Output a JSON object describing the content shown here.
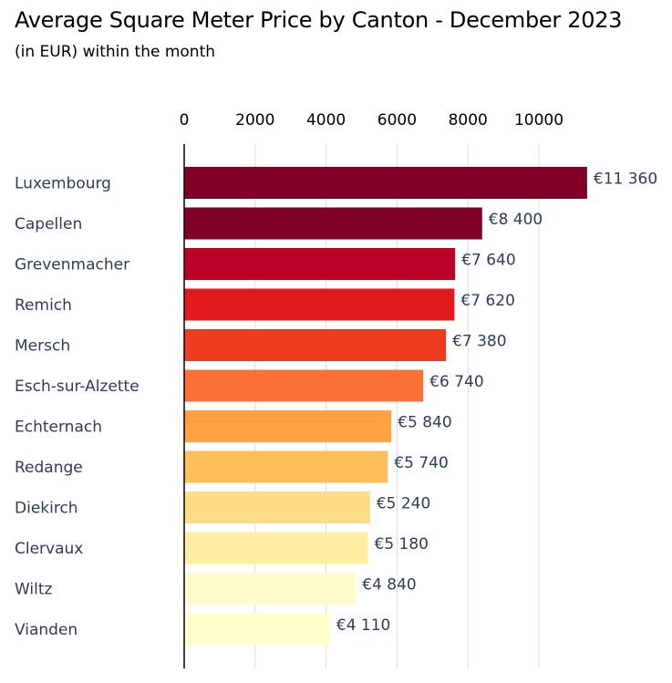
{
  "chart_data": {
    "type": "bar",
    "orientation": "horizontal",
    "title": "Average Square Meter Price by Canton - December 2023",
    "subtitle": "(in EUR) within the month",
    "categories": [
      "Luxembourg",
      "Capellen",
      "Grevenmacher",
      "Remich",
      "Mersch",
      "Esch-sur-Alzette",
      "Echternach",
      "Redange",
      "Diekirch",
      "Clervaux",
      "Wiltz",
      "Vianden"
    ],
    "values": [
      11360,
      8400,
      7640,
      7620,
      7380,
      6740,
      5840,
      5740,
      5240,
      5180,
      4840,
      4110
    ],
    "data_labels": [
      "€11 360",
      "€8 400",
      "€7 640",
      "€7 620",
      "€7 380",
      "€6 740",
      "€5 840",
      "€5 740",
      "€5 240",
      "€5 180",
      "€4 840",
      "€4 110"
    ],
    "colors": [
      "#800026",
      "#800026",
      "#bd0026",
      "#e31a1c",
      "#f03b20",
      "#fd7036",
      "#fea243",
      "#febe59",
      "#fedd85",
      "#ffeea2",
      "#fffccc",
      "#ffffcc"
    ],
    "x_ticks": [
      0,
      2000,
      4000,
      6000,
      8000,
      10000
    ],
    "xlim": [
      0,
      11360
    ],
    "axis_position": "top",
    "grid": "vertical",
    "xlabel": "",
    "ylabel": ""
  }
}
